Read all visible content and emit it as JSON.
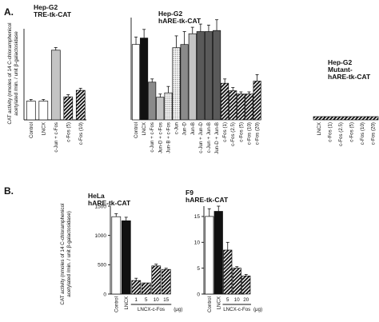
{
  "panel_letters": {
    "a": "A.",
    "b": "B."
  },
  "chart_data": [
    {
      "type": "bar",
      "title": "Hep-G2",
      "subtitle": "TRE-tk-CAT",
      "ylabel": "CAT activity (nmoles of 14 C-chloramphenicol acetylated /min. / unit β-galactosidase",
      "categories": [
        "Control",
        "LNCX",
        "c-Jun + c-Fos",
        "c-Fos (5)",
        "c-Fos (10)"
      ],
      "values": [
        3.5,
        3.5,
        13,
        4.3,
        5.5
      ],
      "errors": [
        0.3,
        0.3,
        0.5,
        0.4,
        0.4
      ],
      "fills": [
        "white",
        "white",
        "lightgray",
        "hatch",
        "hatch"
      ],
      "ylim": [
        0,
        17
      ]
    },
    {
      "type": "bar",
      "title": "Hep-G2",
      "subtitle": "hARE-tk-CAT",
      "categories": [
        "Control",
        "LNCX",
        "c-Jun + c-Fos",
        "Jun-D + c-Fos",
        "Jun-B + c-Fos",
        "c-Jun",
        "Jun-D",
        "Jun-B",
        "c-Jun + Jun-D",
        "c-Jun + Jun-B",
        "Jun-D + Jun-B",
        "c-Fos (1)",
        "c-Fos (2.5)",
        "c-Fos (5)",
        "c-Fos (10)",
        "c-Fos (20)"
      ],
      "values": [
        70,
        76,
        35,
        21,
        25,
        67,
        70,
        80,
        82,
        82,
        83,
        34,
        27,
        24,
        24,
        36
      ],
      "errors": [
        7,
        8,
        3,
        3,
        6,
        11,
        12,
        6,
        7,
        6,
        10,
        4,
        3,
        2,
        2,
        6
      ],
      "fills": [
        "white",
        "black",
        "gray",
        "lightgray",
        "dots",
        "dots",
        "gray",
        "lightgray",
        "darkgray",
        "darkgray",
        "darkgray",
        "hatch",
        "hatch",
        "hatch",
        "hatch",
        "hatch"
      ],
      "ylim": [
        0,
        95
      ]
    },
    {
      "type": "bar",
      "title": "Hep-G2",
      "subtitle": "Mutant-",
      "subtitle2": "hARE-tk-CAT",
      "categories": [
        "LNCX",
        "c-Fos (1)",
        "c-Fos (2.5)",
        "c-Fos (5)",
        "c-Fos (10)",
        "c-Fos (20)"
      ],
      "values": [
        4,
        4,
        4,
        4,
        4,
        4
      ],
      "fills": [
        "hatch",
        "hatch",
        "hatch",
        "hatch",
        "hatch",
        "hatch"
      ],
      "ylim": [
        0,
        95
      ]
    },
    {
      "type": "bar",
      "title": "HeLa",
      "subtitle": "hARE-tk-CAT",
      "ylabel": "CAT activity (nmoles of 14 C-chloramphenicol acetylated /min. / unit β-galactosidase)",
      "categories": [
        "Control",
        "LNCX",
        "1",
        "5",
        "10",
        "15"
      ],
      "group_label": "LNCX-c-Fos",
      "unit": "(μg)",
      "values": [
        1320,
        1250,
        230,
        190,
        480,
        420
      ],
      "errors": [
        50,
        60,
        40,
        0,
        30,
        20
      ],
      "fills": [
        "white",
        "black",
        "hatch",
        "hatch",
        "hatch",
        "hatch"
      ],
      "yticks": [
        0,
        500,
        1000,
        1500
      ],
      "ytick_labels": [
        "0",
        "500",
        "1000",
        "1500"
      ],
      "ylim": [
        0,
        1500
      ]
    },
    {
      "type": "bar",
      "title": "F9",
      "subtitle": "hARE-tk-CAT",
      "categories": [
        "Control",
        "LNCX",
        "5",
        "10",
        "20"
      ],
      "group_label": "LNCX-c-Fos",
      "unit": "(μg)",
      "values": [
        15,
        16,
        8.5,
        5,
        3.5
      ],
      "errors": [
        1.5,
        1,
        1.5,
        0.3,
        0.3
      ],
      "fills": [
        "white",
        "black",
        "hatch",
        "hatch",
        "hatch"
      ],
      "yticks": [
        0,
        5,
        10,
        15
      ],
      "ytick_labels": [
        "0",
        "5",
        "10",
        "15"
      ],
      "ylim": [
        0,
        17
      ]
    }
  ]
}
